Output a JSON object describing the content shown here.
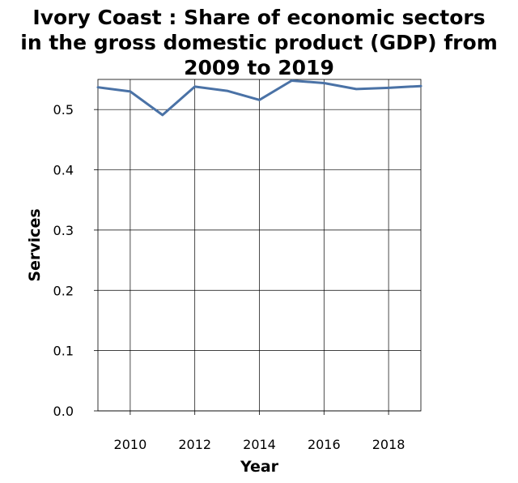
{
  "chart_data": {
    "type": "line",
    "title": "Ivory Coast : Share of economic sectors\nin the gross domestic product (GDP) from\n2009 to 2019",
    "xlabel": "Year",
    "ylabel": "Services",
    "xlim": [
      2009,
      2019
    ],
    "ylim": [
      0,
      0.55
    ],
    "xticks": [
      2010,
      2012,
      2014,
      2016,
      2018
    ],
    "yticks": [
      "0.0",
      "0.1",
      "0.2",
      "0.3",
      "0.4",
      "0.5"
    ],
    "grid": true,
    "line_color": "#4a72a6",
    "x": [
      2009,
      2010,
      2011,
      2012,
      2013,
      2014,
      2015,
      2016,
      2017,
      2018,
      2019
    ],
    "values": [
      0.537,
      0.53,
      0.491,
      0.538,
      0.531,
      0.516,
      0.548,
      0.544,
      0.534,
      0.536,
      0.539
    ]
  }
}
